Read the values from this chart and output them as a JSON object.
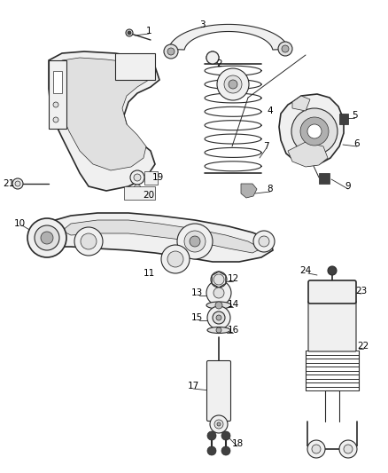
{
  "background_color": "#ffffff",
  "line_color": "#2a2a2a",
  "label_color": "#000000",
  "figsize": [
    4.38,
    5.33
  ],
  "dpi": 100,
  "lw_main": 0.8,
  "lw_thin": 0.5,
  "lw_thick": 1.2,
  "fill_light": "#f0f0f0",
  "fill_mid": "#e0e0e0",
  "fill_dark": "#b0b0b0",
  "fill_black": "#404040"
}
